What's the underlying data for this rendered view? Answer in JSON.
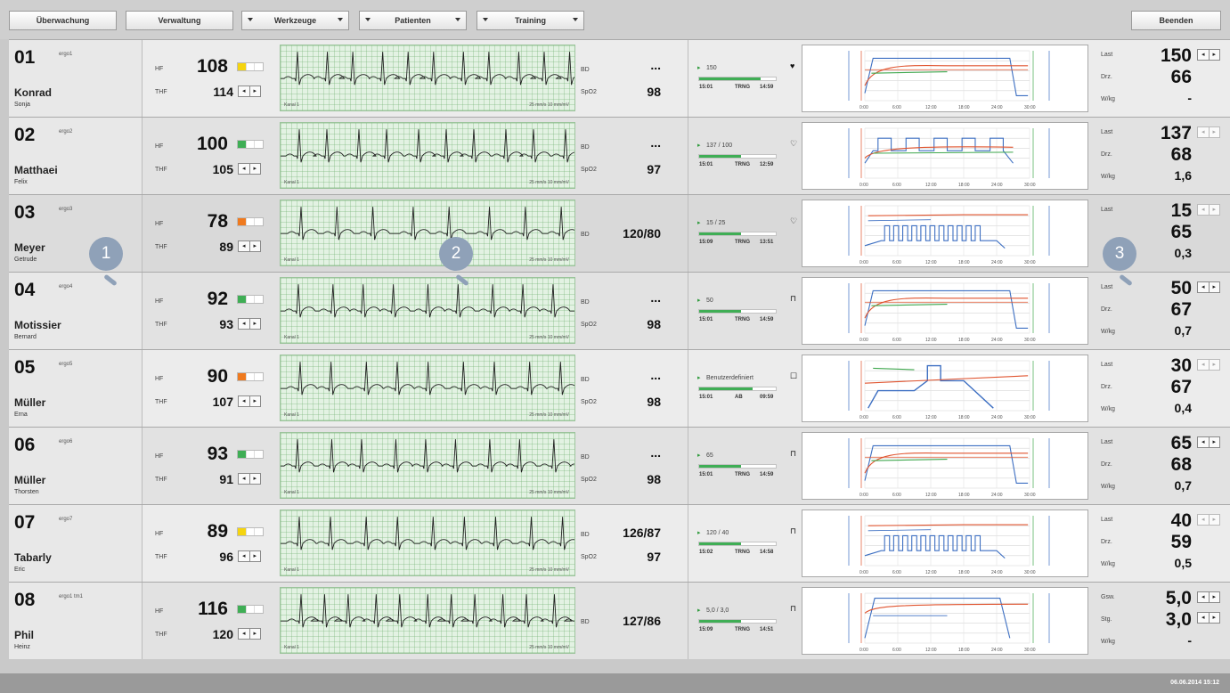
{
  "toolbar": {
    "ueberwachung": "Überwachung",
    "verwaltung": "Verwaltung",
    "werkzeuge": "Werkzeuge",
    "patienten": "Patienten",
    "training": "Training",
    "beenden": "Beenden"
  },
  "labels": {
    "hf": "HF",
    "thf": "THF",
    "bd": "BD",
    "spo2": "SpO2",
    "last": "Last",
    "drz": "Drz.",
    "wkg": "W/kg",
    "gsw": "Gsw.",
    "stg": "Stg.",
    "kanal": "Kanal 1",
    "speed": "25 mm/s  10 mm/mV",
    "step_left": "◂",
    "step_right": "▸"
  },
  "colors": {
    "ecg_line": "#222222",
    "ecg_grid": "#9cc49c",
    "trend_red": "#e0542f",
    "trend_green": "#3ea74d",
    "trend_blue": "#3d6fc2",
    "status_green": "#3fae55",
    "status_yellow": "#f5d40f",
    "status_orange": "#ef7a1f",
    "marker": "#8fa1b8"
  },
  "mini_chart": {
    "ticks": [
      "0:00",
      "6:00",
      "12:00",
      "18:00",
      "24:00",
      "30:00"
    ]
  },
  "patients": [
    {
      "bed": "01",
      "channel": "ergo1",
      "last_name": "Konrad",
      "first_name": "Sonja",
      "hf": "108",
      "thf": "114",
      "signal_color": "#f5d40f",
      "bd": "...",
      "spo2": "98",
      "show_spo2": true,
      "program": "150",
      "program_icon": "heart-filled-icon",
      "icon_glyph": "♥",
      "progress": 0.8,
      "start": "15:01",
      "mode": "TRNG",
      "remaining": "14:59",
      "val1_label": "Last",
      "val1": "150",
      "val2_label": "Drz.",
      "val2": "66",
      "val3_label": "W/kg",
      "val3": "-",
      "stepper1": true,
      "stepper2": false,
      "trend": "step"
    },
    {
      "bed": "02",
      "channel": "ergo2",
      "last_name": "Matthaei",
      "first_name": "Felix",
      "hf": "100",
      "thf": "105",
      "signal_color": "#3fae55",
      "bd": "...",
      "spo2": "97",
      "show_spo2": true,
      "program": "137 / 100",
      "program_icon": "heart-outline-icon",
      "icon_glyph": "♡",
      "progress": 0.55,
      "start": "15:01",
      "mode": "TRNG",
      "remaining": "12:59",
      "val1_label": "Last",
      "val1": "137",
      "val2_label": "Drz.",
      "val2": "68",
      "val3_label": "W/kg",
      "val3": "1,6",
      "stepper1": false,
      "stepper2": false,
      "trend": "interval_wide"
    },
    {
      "bed": "03",
      "channel": "ergo3",
      "last_name": "Meyer",
      "first_name": "Getrude",
      "hf": "78",
      "thf": "89",
      "signal_color": "#ef7a1f",
      "bd": "120/80",
      "spo2": "",
      "show_spo2": false,
      "program": "15 / 25",
      "program_icon": "heart-outline-icon",
      "icon_glyph": "♡",
      "progress": 0.55,
      "start": "15:09",
      "mode": "TRNG",
      "remaining": "13:51",
      "val1_label": "Last",
      "val1": "15",
      "val2_label": "",
      "val2": "65",
      "val3_label": "",
      "val3": "0,3",
      "stepper1": false,
      "stepper2": false,
      "trend": "interval_dense"
    },
    {
      "bed": "04",
      "channel": "ergo4",
      "last_name": "Motissier",
      "first_name": "Bernard",
      "hf": "92",
      "thf": "93",
      "signal_color": "#3fae55",
      "bd": "...",
      "spo2": "98",
      "show_spo2": true,
      "program": "50",
      "program_icon": "pulse-icon",
      "icon_glyph": "⊓",
      "progress": 0.55,
      "start": "15:01",
      "mode": "TRNG",
      "remaining": "14:59",
      "val1_label": "Last",
      "val1": "50",
      "val2_label": "Drz.",
      "val2": "67",
      "val3_label": "W/kg",
      "val3": "0,7",
      "stepper1": true,
      "stepper2": false,
      "trend": "step"
    },
    {
      "bed": "05",
      "channel": "ergo5",
      "last_name": "Müller",
      "first_name": "Erna",
      "hf": "90",
      "thf": "107",
      "signal_color": "#ef7a1f",
      "bd": "...",
      "spo2": "98",
      "show_spo2": true,
      "program": "Benutzerdefiniert",
      "program_icon": "square-icon",
      "icon_glyph": "☐",
      "progress": 0.7,
      "start": "15:01",
      "mode": "AB",
      "remaining": "09:59",
      "val1_label": "Last",
      "val1": "30",
      "val2_label": "Drz.",
      "val2": "67",
      "val3_label": "W/kg",
      "val3": "0,4",
      "stepper1": false,
      "stepper2": false,
      "trend": "custom"
    },
    {
      "bed": "06",
      "channel": "ergo6",
      "last_name": "Müller",
      "first_name": "Thorsten",
      "hf": "93",
      "thf": "91",
      "signal_color": "#3fae55",
      "bd": "...",
      "spo2": "98",
      "show_spo2": true,
      "program": "65",
      "program_icon": "pulse-icon",
      "icon_glyph": "⊓",
      "progress": 0.55,
      "start": "15:01",
      "mode": "TRNG",
      "remaining": "14:59",
      "val1_label": "Last",
      "val1": "65",
      "val2_label": "Drz.",
      "val2": "68",
      "val3_label": "W/kg",
      "val3": "0,7",
      "stepper1": true,
      "stepper2": false,
      "trend": "step"
    },
    {
      "bed": "07",
      "channel": "ergo7",
      "last_name": "Tabarly",
      "first_name": "Eric",
      "hf": "89",
      "thf": "96",
      "signal_color": "#f5d40f",
      "bd": "126/87",
      "spo2": "97",
      "show_spo2": true,
      "program": "120 / 40",
      "program_icon": "interval-icon",
      "icon_glyph": "⊓",
      "progress": 0.55,
      "start": "15:02",
      "mode": "TRNG",
      "remaining": "14:58",
      "val1_label": "Last",
      "val1": "40",
      "val2_label": "Drz.",
      "val2": "59",
      "val3_label": "W/kg",
      "val3": "0,5",
      "stepper1": false,
      "stepper2": false,
      "trend": "interval_dense"
    },
    {
      "bed": "08",
      "channel": "ergo1 tm1",
      "last_name": "Phil",
      "first_name": "Heinz",
      "hf": "116",
      "thf": "120",
      "signal_color": "#3fae55",
      "bd": "127/86",
      "spo2": "",
      "show_spo2": false,
      "program": "5,0 / 3,0",
      "program_icon": "pulse-icon",
      "icon_glyph": "⊓",
      "progress": 0.55,
      "start": "15:09",
      "mode": "TRNG",
      "remaining": "14:51",
      "val1_label": "Gsw.",
      "val1": "5,0",
      "val2_label": "Stg.",
      "val2": "3,0",
      "val3_label": "W/kg",
      "val3": "-",
      "stepper1": true,
      "stepper2": true,
      "trend": "treadmill"
    }
  ],
  "markers": [
    "1",
    "2",
    "3"
  ],
  "status": {
    "datetime": "06.06.2014 15:12"
  }
}
